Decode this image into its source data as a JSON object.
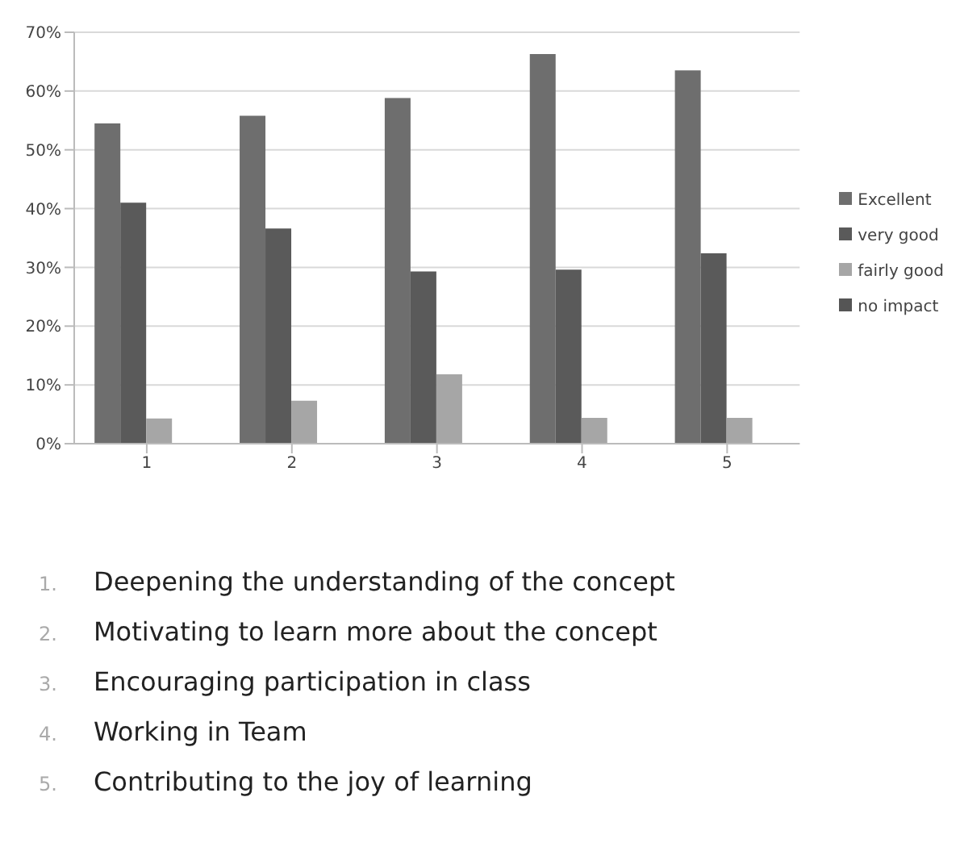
{
  "chart_data": {
    "type": "bar",
    "categories": [
      "1",
      "2",
      "3",
      "4",
      "5"
    ],
    "series": [
      {
        "name": "Excellent",
        "color": "#6e6e6e",
        "values": [
          54.5,
          55.8,
          58.8,
          66.3,
          63.5
        ]
      },
      {
        "name": "very good",
        "color": "#5a5a5a",
        "values": [
          41,
          36.6,
          29.3,
          29.6,
          32.4
        ]
      },
      {
        "name": "fairly good",
        "color": "#a6a6a6",
        "values": [
          4.3,
          7.3,
          11.8,
          4.4,
          4.4
        ]
      },
      {
        "name": "no impact",
        "color": "#555555",
        "values": [
          0,
          0,
          0,
          0,
          0
        ]
      }
    ],
    "ylim": [
      0,
      70
    ],
    "yticks": [
      {
        "value": 0,
        "label": "0%"
      },
      {
        "value": 10,
        "label": "10%"
      },
      {
        "value": 20,
        "label": "20%"
      },
      {
        "value": 30,
        "label": "30%"
      },
      {
        "value": 40,
        "label": "40%"
      },
      {
        "value": 50,
        "label": "50%"
      },
      {
        "value": 60,
        "label": "60%"
      },
      {
        "value": 70,
        "label": "70%"
      }
    ],
    "grid": "y",
    "legend": "right",
    "annotations": [
      "1. Deepening the understanding of the concept",
      "2. Motivating to learn more about the concept",
      "3. Encouraging participation in class",
      "4. Working in Team",
      "5. Contributing to the joy of learning"
    ]
  }
}
